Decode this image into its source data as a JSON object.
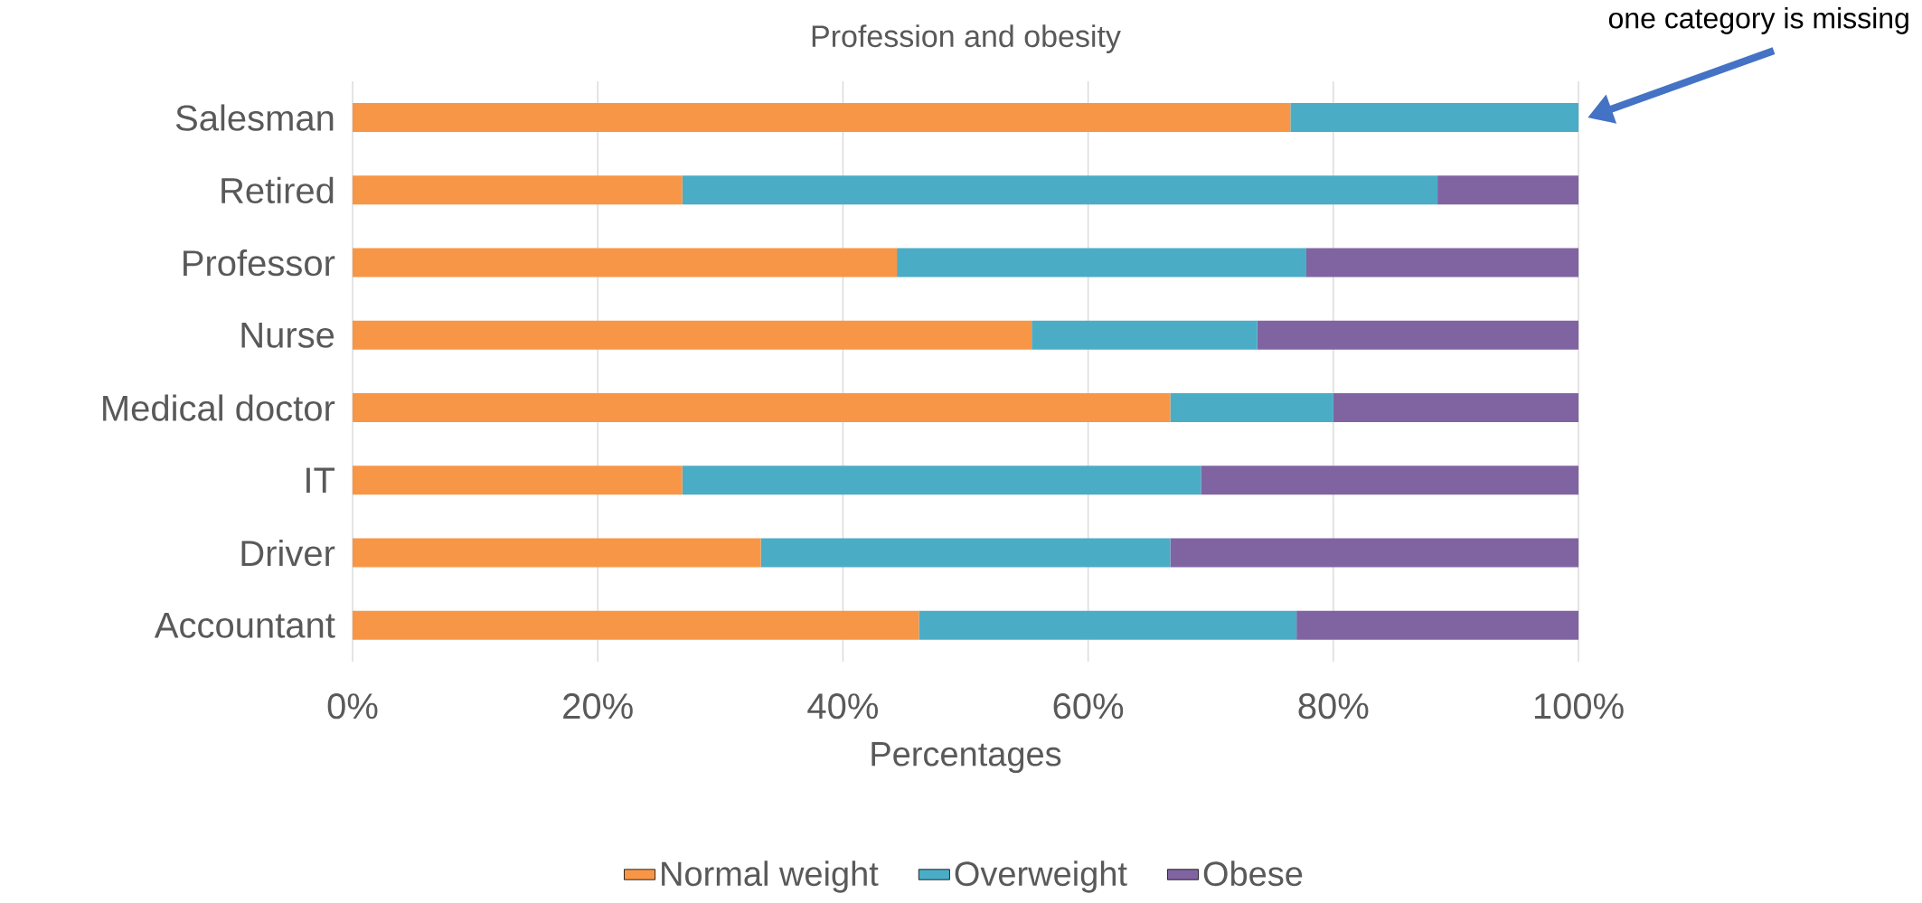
{
  "chart_data": {
    "type": "bar",
    "orientation": "horizontal",
    "stacked": true,
    "title": "Profession and obesity",
    "xlabel": "Percentages",
    "categories": [
      "Salesman",
      "Retired",
      "Professor",
      "Nurse",
      "Medical doctor",
      "IT",
      "Driver",
      "Accountant"
    ],
    "series": [
      {
        "name": "Normal weight",
        "color": "#f79646",
        "values": [
          76.5,
          26.9,
          44.4,
          55.4,
          66.7,
          26.9,
          33.3,
          46.2
        ]
      },
      {
        "name": "Overweight",
        "color": "#4bacc6",
        "values": [
          23.5,
          61.6,
          33.4,
          18.4,
          13.3,
          42.3,
          33.4,
          30.8
        ]
      },
      {
        "name": "Obese",
        "color": "#8064a2",
        "values": [
          0,
          11.5,
          22.2,
          26.2,
          20,
          30.8,
          33.3,
          23
        ]
      }
    ],
    "xlim": [
      0,
      100
    ],
    "xticks": [
      {
        "value": 0,
        "label": "0%"
      },
      {
        "value": 20,
        "label": "20%"
      },
      {
        "value": 40,
        "label": "40%"
      },
      {
        "value": 60,
        "label": "60%"
      },
      {
        "value": 80,
        "label": "80%"
      },
      {
        "value": 100,
        "label": "100%"
      }
    ],
    "grid": "x",
    "legend": "bottom",
    "annotations": [
      "one category is missing"
    ]
  }
}
